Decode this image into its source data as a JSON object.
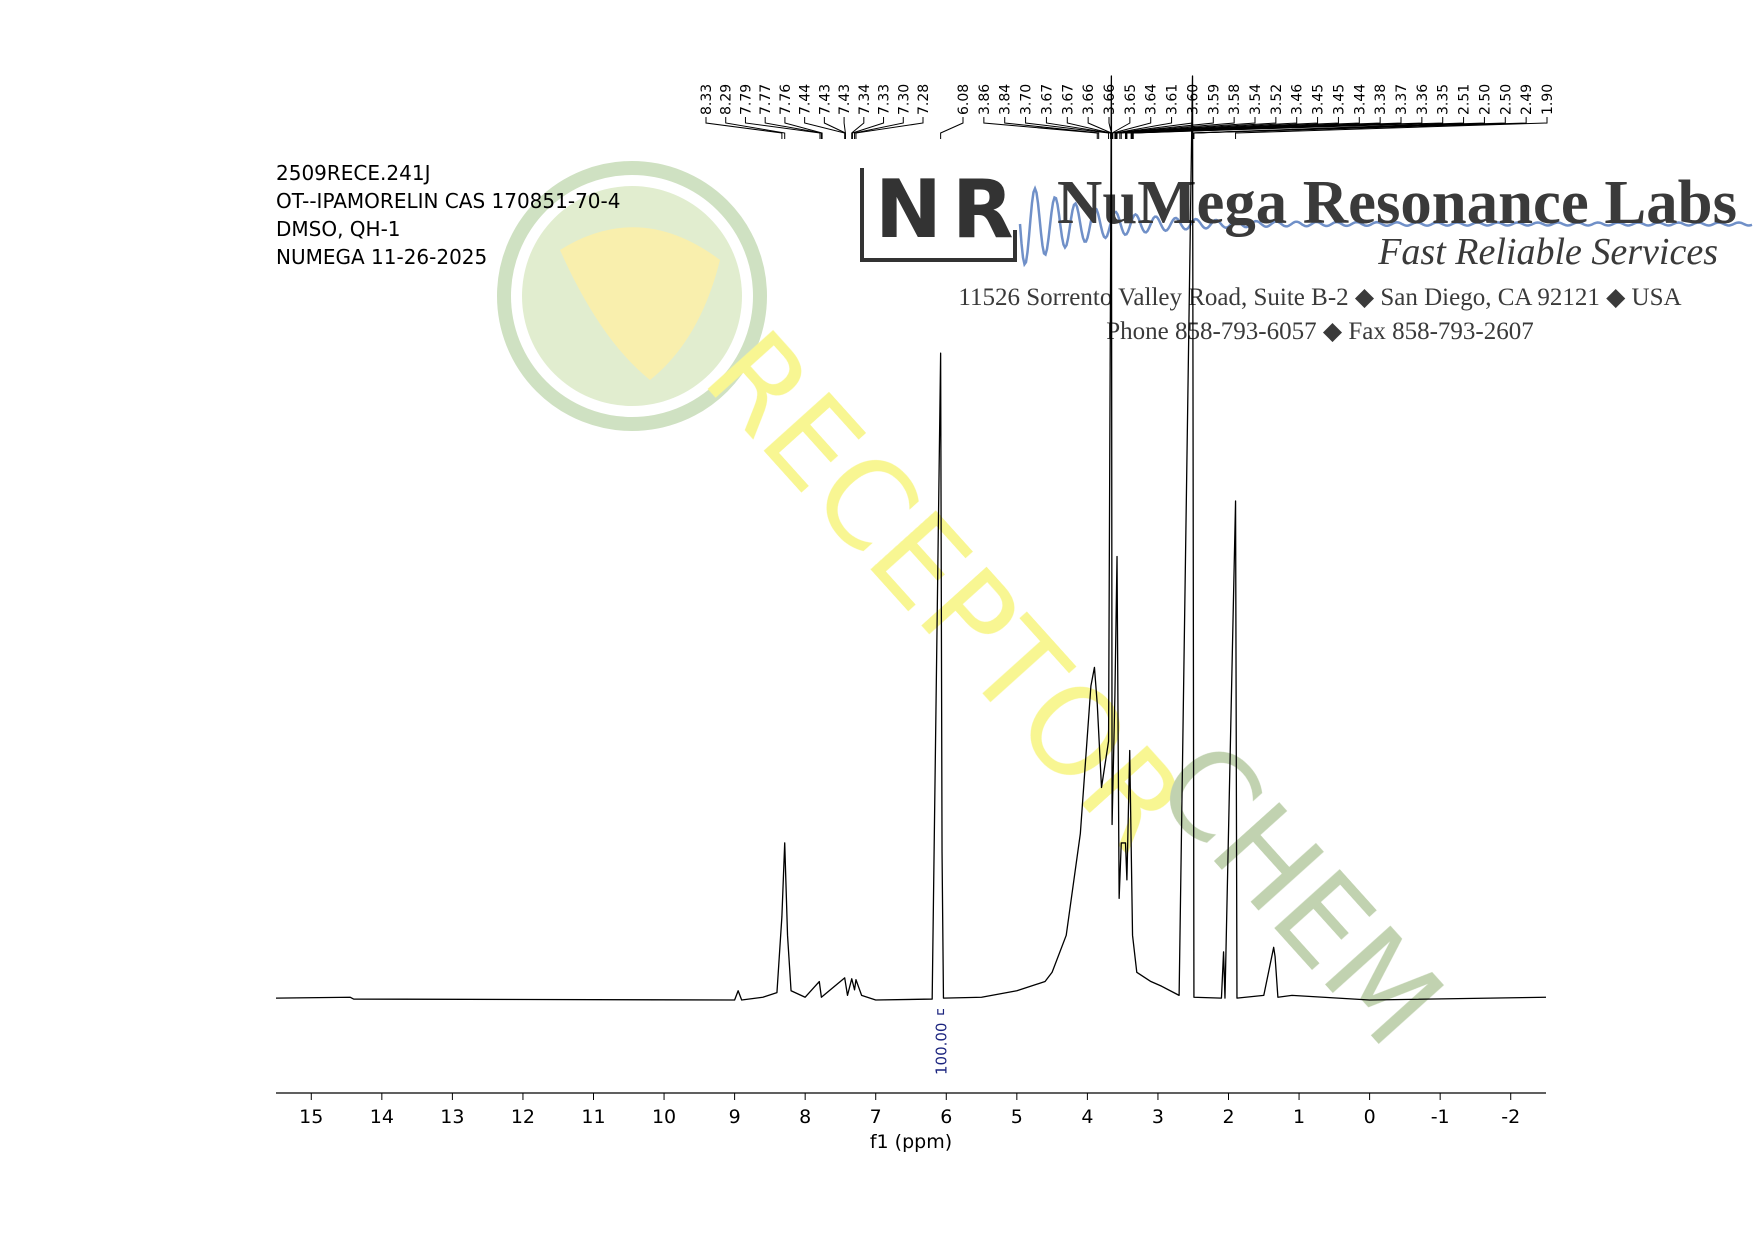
{
  "sample_info": [
    "2509RECE.241J",
    "OT--IPAMORELIN CAS 170851-70-4",
    "DMSO, QH-1",
    "NUMEGA 11-26-2025"
  ],
  "logo": {
    "initial_1": "N",
    "initial_2": "R",
    "name": "NuMega Resonance Labs",
    "slogan": "Fast Reliable Services",
    "address": "11526 Sorrento Valley Road, Suite B-2 ◆ San Diego, CA 92121 ◆ USA",
    "phone": "Phone 858-793-6057 ◆ Fax 858-793-2607"
  },
  "watermark": [
    "RECEPTOR",
    "CHEM"
  ],
  "chart_data": {
    "type": "line",
    "x_label": "f1 (ppm)",
    "color": "#000000",
    "xlim": [
      15.5,
      -2.5
    ],
    "xticks": [
      15,
      14,
      13,
      12,
      11,
      10,
      9,
      8,
      7,
      6,
      5,
      4,
      3,
      2,
      1,
      0,
      -1,
      -2
    ],
    "ylim": [
      0,
      100
    ],
    "x": [
      15.5,
      14.45,
      14.4,
      9.0,
      8.95,
      8.9,
      8.6,
      8.4,
      8.33,
      8.29,
      8.25,
      8.2,
      8.0,
      7.8,
      7.77,
      7.44,
      7.4,
      7.34,
      7.3,
      7.28,
      7.2,
      7.0,
      6.2,
      6.08,
      6.06,
      6.04,
      5.5,
      5.0,
      4.6,
      4.5,
      4.3,
      4.1,
      3.95,
      3.9,
      3.86,
      3.8,
      3.7,
      3.66,
      3.65,
      3.61,
      3.58,
      3.55,
      3.52,
      3.46,
      3.44,
      3.4,
      3.36,
      3.3,
      3.1,
      2.95,
      2.7,
      2.51,
      2.49,
      2.1,
      2.07,
      2.05,
      1.9,
      1.88,
      1.5,
      1.36,
      1.34,
      1.3,
      1.1,
      0,
      -2.5
    ],
    "values": [
      0.2,
      0.3,
      0.1,
      0,
      1.0,
      0,
      0.3,
      0.8,
      9,
      17,
      7,
      1,
      0.3,
      2,
      0.3,
      2.4,
      0.5,
      2.3,
      1.1,
      2.2,
      0.5,
      0,
      0.1,
      70,
      16,
      0.2,
      0.3,
      1,
      2,
      3,
      7,
      18,
      34,
      36,
      32,
      23,
      28,
      100,
      19,
      33,
      48,
      11,
      17,
      17,
      13,
      27,
      7,
      3,
      2,
      1.5,
      0.5,
      100,
      0.3,
      0.2,
      5.2,
      0.2,
      54,
      0.2,
      0.5,
      5.7,
      4.7,
      0.3,
      0.5,
      0,
      0.3
    ],
    "peaks": [
      8.33,
      8.29,
      7.79,
      7.77,
      7.76,
      7.44,
      7.43,
      7.43,
      7.34,
      7.33,
      {
        "value": 7.3,
        "label": "7.30"
      },
      7.28,
      6.08,
      3.86,
      3.84,
      {
        "value": 3.7,
        "label": "3.70"
      },
      3.67,
      3.67,
      3.66,
      3.66,
      3.65,
      3.64,
      3.61,
      {
        "value": 3.6,
        "label": "3.60"
      },
      3.59,
      3.58,
      3.54,
      3.52,
      3.46,
      3.45,
      3.45,
      3.44,
      3.38,
      3.37,
      3.36,
      3.35,
      2.51,
      {
        "value": 2.5,
        "label": "2.50"
      },
      {
        "value": 2.5,
        "label": "2.50"
      },
      2.49,
      {
        "value": 1.9,
        "label": "1.90"
      }
    ],
    "integrals": [
      {
        "range": [
          6.12,
          6.04
        ],
        "value": 100,
        "label": "100.00"
      }
    ]
  }
}
